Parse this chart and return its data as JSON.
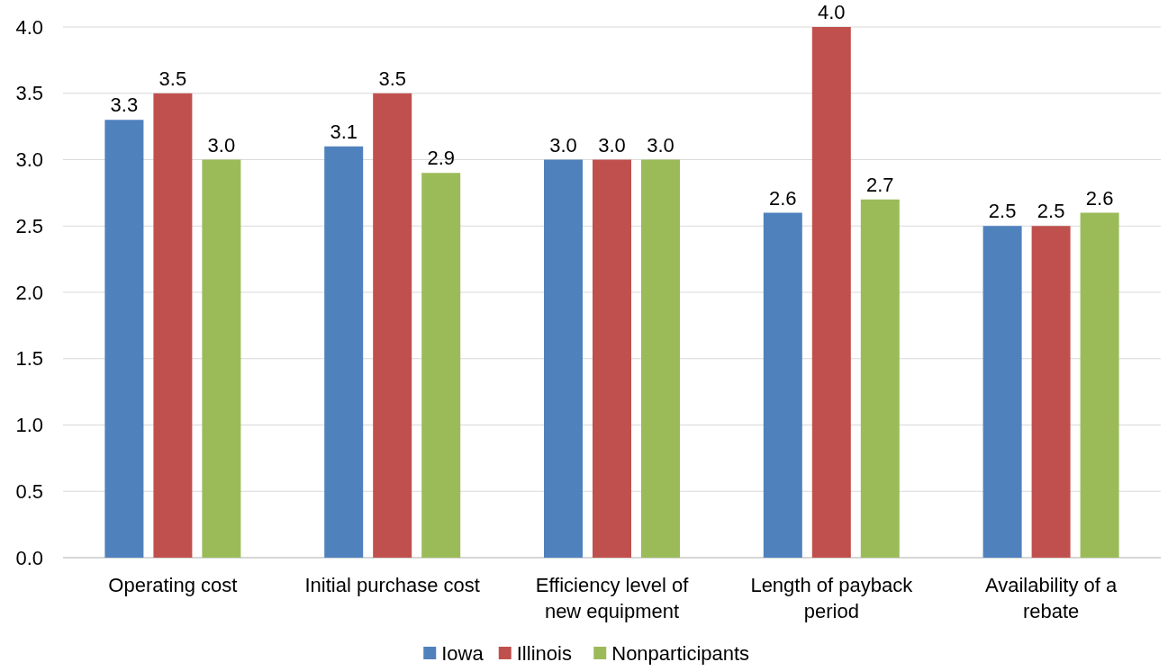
{
  "chart_data": {
    "type": "bar",
    "categories": [
      "Operating cost",
      "Initial purchase cost",
      "Efficiency level of new equipment",
      "Length of payback period",
      "Availability of a rebate"
    ],
    "series": [
      {
        "name": "Iowa",
        "color": "#4f81bd",
        "values": [
          3.3,
          3.1,
          3.0,
          2.6,
          2.5
        ],
        "value_labels": [
          "3.3",
          "3.1",
          "3.0",
          "2.6",
          "2.5"
        ]
      },
      {
        "name": "Illinois",
        "color": "#c0504d",
        "values": [
          3.5,
          3.5,
          3.0,
          4.0,
          2.5
        ],
        "value_labels": [
          "3.5",
          "3.5",
          "3.0",
          "4.0",
          "2.5"
        ]
      },
      {
        "name": "Nonparticipants",
        "color": "#9bbb59",
        "values": [
          3.0,
          2.9,
          3.0,
          2.7,
          2.6
        ],
        "value_labels": [
          "3.0",
          "2.9",
          "3.0",
          "2.7",
          "2.6"
        ]
      }
    ],
    "ylim": [
      0,
      4
    ],
    "yticks": [
      {
        "value": 0,
        "label": "0.0"
      },
      {
        "value": 0.5,
        "label": "0.5"
      },
      {
        "value": 1,
        "label": "1.0"
      },
      {
        "value": 1.5,
        "label": "1.5"
      },
      {
        "value": 2,
        "label": "2.0"
      },
      {
        "value": 2.5,
        "label": "2.5"
      },
      {
        "value": 3,
        "label": "3.0"
      },
      {
        "value": 3.5,
        "label": "3.5"
      },
      {
        "value": 4,
        "label": "4.0"
      }
    ],
    "grid": "y",
    "legend": "bottom"
  }
}
